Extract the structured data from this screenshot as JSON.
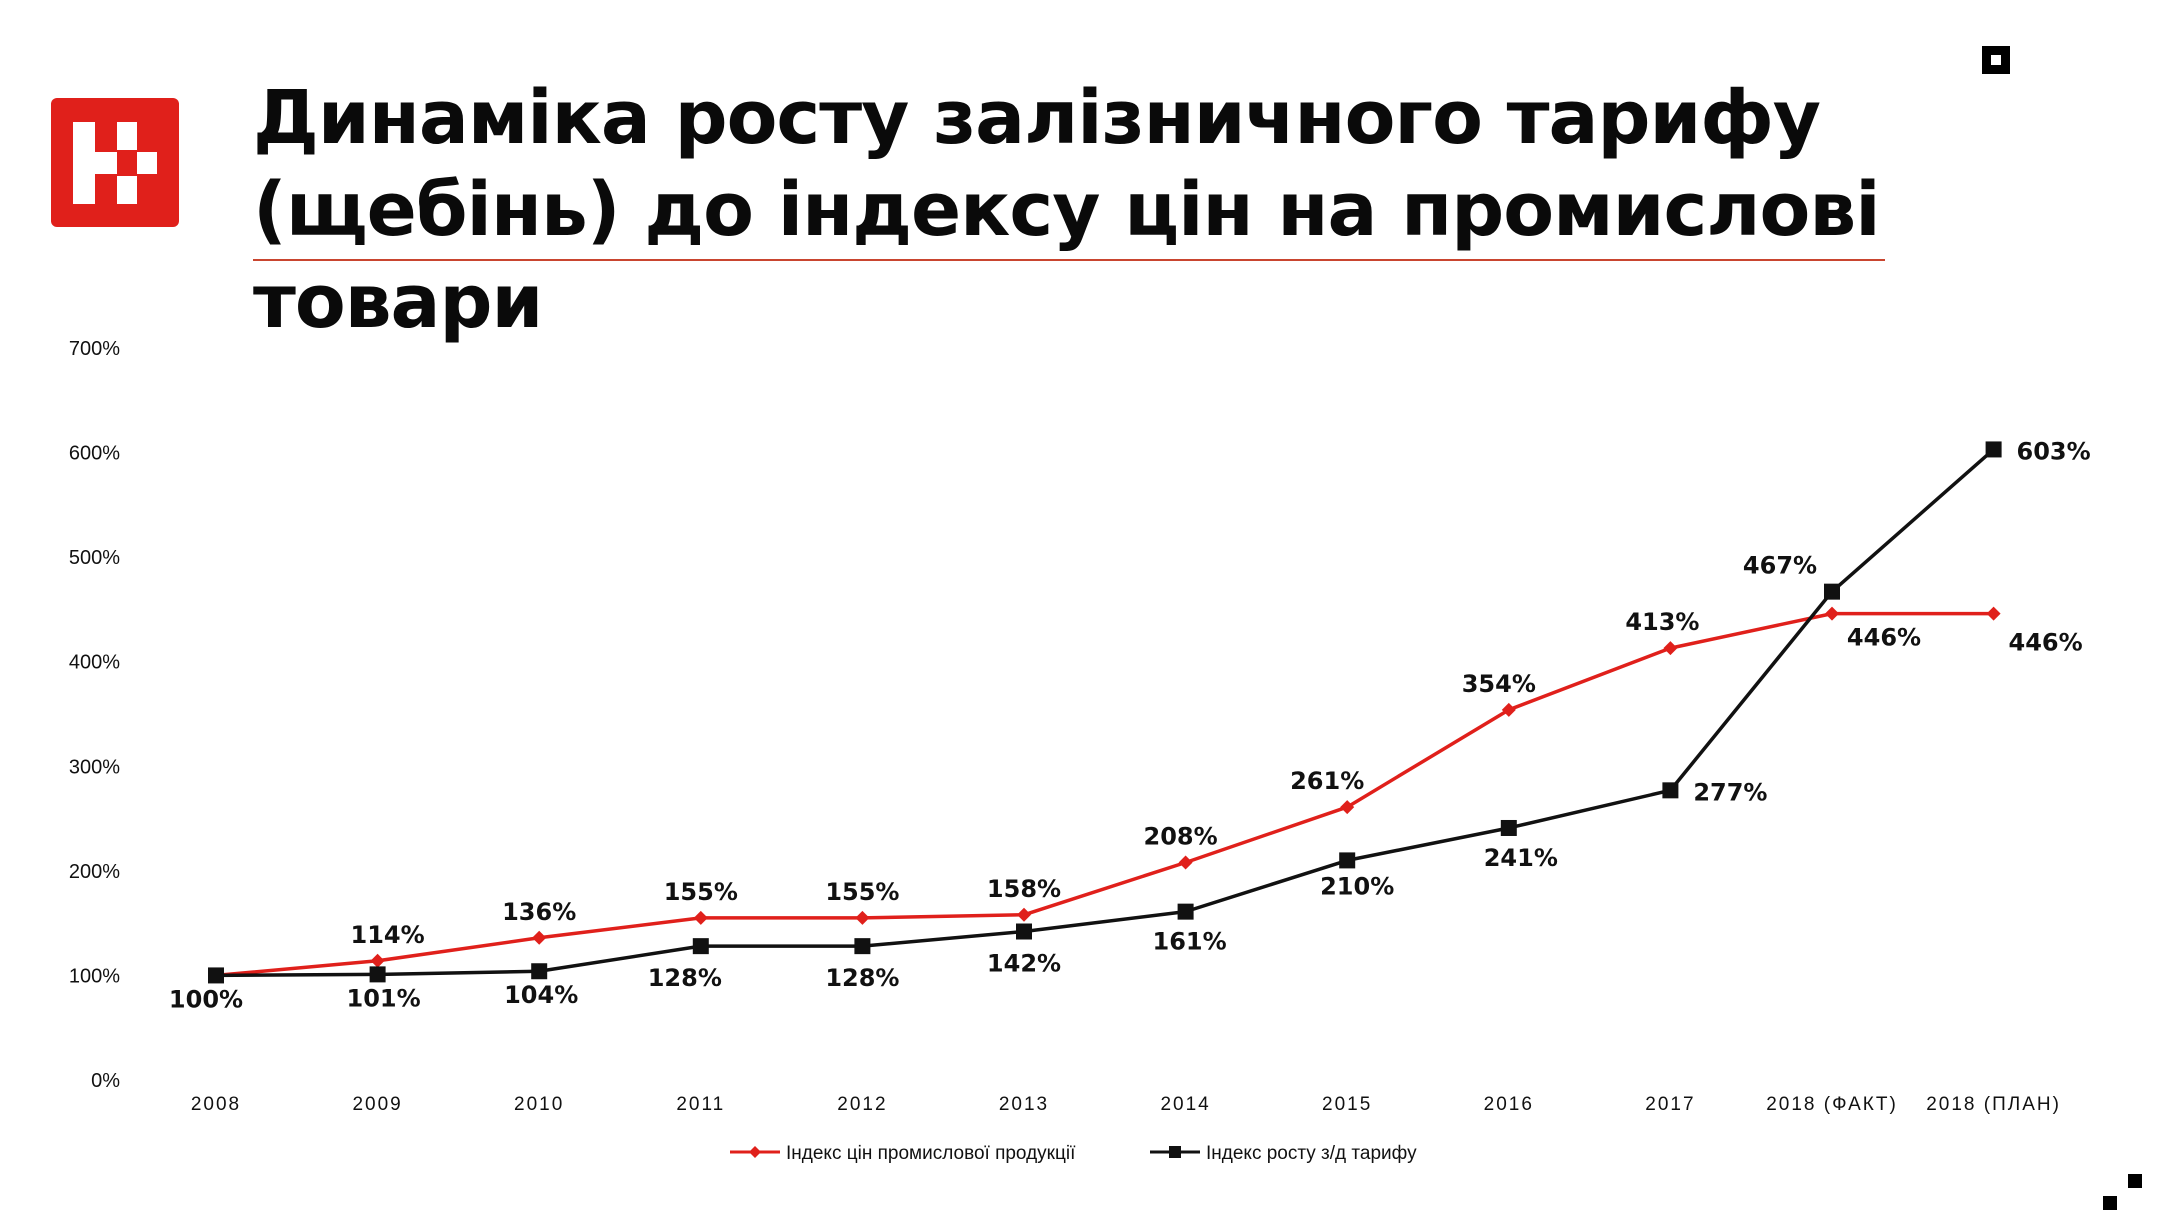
{
  "header": {
    "title": "Динаміка росту залізничного тарифу (щебінь) до індексу цін на промислові товари",
    "logo_icon": "company-logo-icon",
    "accent_color": "#e0201b"
  },
  "chart_data": {
    "type": "line",
    "title": "",
    "xlabel": "",
    "ylabel": "",
    "categories": [
      "2008",
      "2009",
      "2010",
      "2011",
      "2012",
      "2013",
      "2014",
      "2015",
      "2016",
      "2017",
      "2018 (ФАКТ)",
      "2018 (ПЛАН)"
    ],
    "yticks": [
      "0%",
      "100%",
      "200%",
      "300%",
      "400%",
      "500%",
      "600%",
      "700%"
    ],
    "ylim": [
      0,
      700
    ],
    "grid": false,
    "legend_position": "bottom",
    "series": [
      {
        "name": "Індекс цін промислової продукції",
        "color": "#e0201b",
        "marker": "diamond",
        "values": [
          100,
          114,
          136,
          155,
          155,
          158,
          208,
          261,
          354,
          413,
          446,
          446
        ],
        "labels": [
          "100%",
          "114%",
          "136%",
          "155%",
          "155%",
          "158%",
          "208%",
          "261%",
          "354%",
          "413%",
          "446%",
          "446%"
        ]
      },
      {
        "name": "Індекс росту з/д тарифу",
        "color": "#111111",
        "marker": "square",
        "values": [
          100,
          101,
          104,
          128,
          128,
          142,
          161,
          210,
          241,
          277,
          467,
          603
        ],
        "labels": [
          "100%",
          "101%",
          "104%",
          "128%",
          "128%",
          "142%",
          "161%",
          "210%",
          "241%",
          "277%",
          "467%",
          "603%"
        ]
      }
    ]
  }
}
